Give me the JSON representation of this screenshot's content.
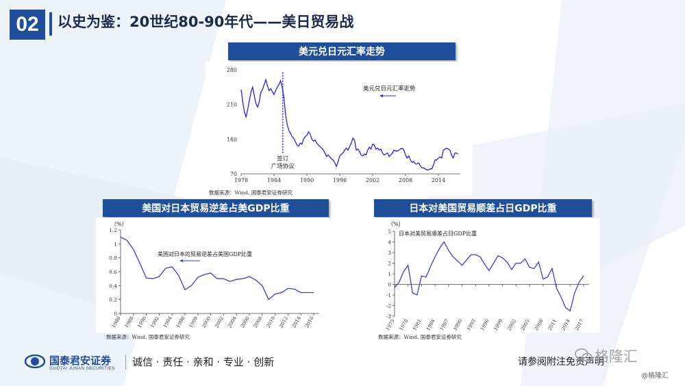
{
  "header": {
    "number": "02",
    "title": "以史为鉴：20世纪80-90年代——美日贸易战"
  },
  "colors": {
    "brand_blue": "#1f4e9a",
    "line_blue": "#2323e6"
  },
  "charts": {
    "fx": {
      "title": "美元兑日元汇率走势",
      "legend": "美元兑日元汇率走势",
      "annotation": [
        "签订",
        "广场协议"
      ],
      "source": "数据来源：Wind,  国泰君安证券研究"
    },
    "us_deficit": {
      "title": "美国对日本贸易逆差占美GDP比重",
      "unit": "（%）",
      "legend": "美国对日本的贸易逆差占美国GDP比重",
      "source": "数据来源：Wind,  国泰君安证券研究"
    },
    "jp_surplus": {
      "title": "日本对美国贸易顺差占日GDP比重",
      "unit": "（%）",
      "legend": "日本对美贸易顺差占日GDP比重",
      "source": "数据来源：Wind,  国泰君安证券研究"
    }
  },
  "chart_data": [
    {
      "type": "line",
      "title": "美元兑日元汇率走势",
      "x_ticks": [
        "1978",
        "1984",
        "1990",
        "1996",
        "2002",
        "2008",
        "2014"
      ],
      "y_ticks": [
        "70",
        "140",
        "210",
        "280"
      ],
      "xlim": [
        1978,
        2018
      ],
      "ylim": [
        70,
        280
      ],
      "series": [
        {
          "name": "美元兑日元汇率走势",
          "x": [
            1978.0,
            1978.3,
            1978.6,
            1978.9,
            1979.2,
            1979.5,
            1979.8,
            1980.1,
            1980.4,
            1980.7,
            1981.0,
            1981.3,
            1981.6,
            1981.9,
            1982.2,
            1982.5,
            1982.8,
            1983.1,
            1983.4,
            1983.7,
            1984.0,
            1984.3,
            1984.6,
            1984.9,
            1985.2,
            1985.5,
            1985.8,
            1986.1,
            1986.4,
            1986.7,
            1987.0,
            1987.3,
            1987.6,
            1987.9,
            1988.2,
            1988.5,
            1988.8,
            1989.1,
            1989.4,
            1989.7,
            1990.0,
            1990.3,
            1990.6,
            1990.9,
            1991.2,
            1991.5,
            1991.8,
            1992.1,
            1992.4,
            1992.7,
            1993.0,
            1993.3,
            1993.6,
            1993.9,
            1994.2,
            1994.5,
            1994.8,
            1995.1,
            1995.4,
            1995.7,
            1996.0,
            1996.3,
            1996.6,
            1996.9,
            1997.2,
            1997.5,
            1997.8,
            1998.1,
            1998.4,
            1998.7,
            1999.0,
            1999.3,
            1999.6,
            1999.9,
            2000.2,
            2000.5,
            2000.8,
            2001.1,
            2001.4,
            2001.7,
            2002.0,
            2002.3,
            2002.6,
            2002.9,
            2003.2,
            2003.5,
            2003.8,
            2004.1,
            2004.4,
            2004.7,
            2005.0,
            2005.3,
            2005.6,
            2005.9,
            2006.2,
            2006.5,
            2006.8,
            2007.1,
            2007.4,
            2007.7,
            2008.0,
            2008.3,
            2008.6,
            2008.9,
            2009.2,
            2009.5,
            2009.8,
            2010.1,
            2010.4,
            2010.7,
            2011.0,
            2011.3,
            2011.6,
            2011.9,
            2012.2,
            2012.5,
            2012.8,
            2013.1,
            2013.4,
            2013.7,
            2014.0,
            2014.3,
            2014.6,
            2014.9,
            2015.2,
            2015.5,
            2015.8,
            2016.1,
            2016.4,
            2016.7,
            2017.0,
            2017.3,
            2017.6
          ],
          "y": [
            240,
            215,
            195,
            185,
            200,
            218,
            235,
            245,
            228,
            212,
            205,
            215,
            235,
            240,
            250,
            260,
            248,
            238,
            242,
            236,
            230,
            238,
            245,
            250,
            258,
            245,
            225,
            190,
            170,
            158,
            152,
            145,
            142,
            135,
            128,
            126,
            132,
            130,
            140,
            145,
            148,
            155,
            150,
            140,
            136,
            138,
            132,
            128,
            125,
            122,
            118,
            112,
            105,
            108,
            104,
            100,
            98,
            92,
            85,
            95,
            106,
            110,
            112,
            118,
            122,
            118,
            125,
            132,
            142,
            138,
            118,
            120,
            115,
            108,
            106,
            110,
            108,
            118,
            124,
            120,
            130,
            128,
            120,
            122,
            118,
            120,
            112,
            108,
            110,
            112,
            105,
            108,
            112,
            118,
            116,
            116,
            118,
            120,
            122,
            118,
            108,
            102,
            106,
            98,
            93,
            95,
            90,
            90,
            92,
            86,
            82,
            82,
            80,
            78,
            78,
            80,
            80,
            88,
            98,
            98,
            102,
            104,
            102,
            118,
            120,
            122,
            120,
            118,
            108,
            102,
            112,
            112,
            110
          ]
        }
      ],
      "annotation": "签订广场协议",
      "annotation_x": 1985.6
    },
    {
      "type": "line",
      "title": "美国对日本贸易逆差占美GDP比重",
      "ylabel": "（%）",
      "x_ticks": [
        "1986",
        "1988",
        "1990",
        "1992",
        "1994",
        "1996",
        "1998",
        "2000",
        "2002",
        "2004",
        "2006",
        "2008",
        "2010",
        "2012",
        "2014",
        "2016"
      ],
      "y_ticks": [
        "0",
        "0.2",
        "0.4",
        "0.6",
        "0.8",
        "1",
        "1.2"
      ],
      "ylim": [
        0,
        1.2
      ],
      "series": [
        {
          "name": "美国对日本的贸易逆差占美国GDP比重",
          "x": [
            1986,
            1987,
            1988,
            1989,
            1990,
            1991,
            1992,
            1993,
            1994,
            1995,
            1996,
            1997,
            1998,
            1999,
            2000,
            2001,
            2002,
            2003,
            2004,
            2005,
            2006,
            2007,
            2008,
            2009,
            2010,
            2011,
            2012,
            2013,
            2014,
            2015,
            2016
          ],
          "values": [
            1.1,
            1.05,
            0.92,
            0.72,
            0.51,
            0.5,
            0.53,
            0.65,
            0.67,
            0.55,
            0.34,
            0.4,
            0.52,
            0.56,
            0.58,
            0.5,
            0.5,
            0.46,
            0.49,
            0.5,
            0.53,
            0.48,
            0.4,
            0.2,
            0.28,
            0.3,
            0.36,
            0.35,
            0.3,
            0.3,
            0.3
          ]
        }
      ]
    },
    {
      "type": "line",
      "title": "日本对美国贸易顺差占日GDP比重",
      "ylabel": "（%）",
      "x_ticks": [
        "1975",
        "1978",
        "1981",
        "1984",
        "1987",
        "1990",
        "1993",
        "1996",
        "1999",
        "2002",
        "2005",
        "2008",
        "2011",
        "2014",
        "2017"
      ],
      "y_ticks": [
        "-3",
        "-2",
        "-1",
        "0",
        "1",
        "2",
        "3",
        "4",
        "5"
      ],
      "ylim": [
        -3,
        5
      ],
      "series": [
        {
          "name": "日本对美贸易顺差占日GDP比重",
          "x": [
            1975,
            1976,
            1977,
            1978,
            1979,
            1980,
            1981,
            1982,
            1983,
            1984,
            1985,
            1986,
            1987,
            1988,
            1989,
            1990,
            1991,
            1992,
            1993,
            1994,
            1995,
            1996,
            1997,
            1998,
            1999,
            2000,
            2001,
            2002,
            2003,
            2004,
            2005,
            2006,
            2007,
            2008,
            2009,
            2010,
            2011,
            2012,
            2013,
            2014,
            2015,
            2016,
            2017
          ],
          "values": [
            -0.3,
            0.2,
            1.2,
            1.8,
            -0.8,
            -1.0,
            0.8,
            0.7,
            1.7,
            2.6,
            3.4,
            4.0,
            3.2,
            2.6,
            2.2,
            1.8,
            2.3,
            2.8,
            2.8,
            2.6,
            1.9,
            1.3,
            2.0,
            2.7,
            2.5,
            2.1,
            1.4,
            2.0,
            2.0,
            2.4,
            1.6,
            1.5,
            2.1,
            0.5,
            0.7,
            1.5,
            -0.4,
            -1.2,
            -2.2,
            -2.5,
            -0.8,
            0.2,
            0.8
          ]
        }
      ]
    }
  ],
  "footer": {
    "logo_cn": "国泰君安证券",
    "logo_en": "GUOTAI JUNAN SECURITIES",
    "slogan": "诚信 · 责任 · 亲和 · 专业 · 创新",
    "disclaimer": "请参阅附注免责声明",
    "watermark": "格隆汇",
    "watermark_small": "@格隆汇"
  }
}
